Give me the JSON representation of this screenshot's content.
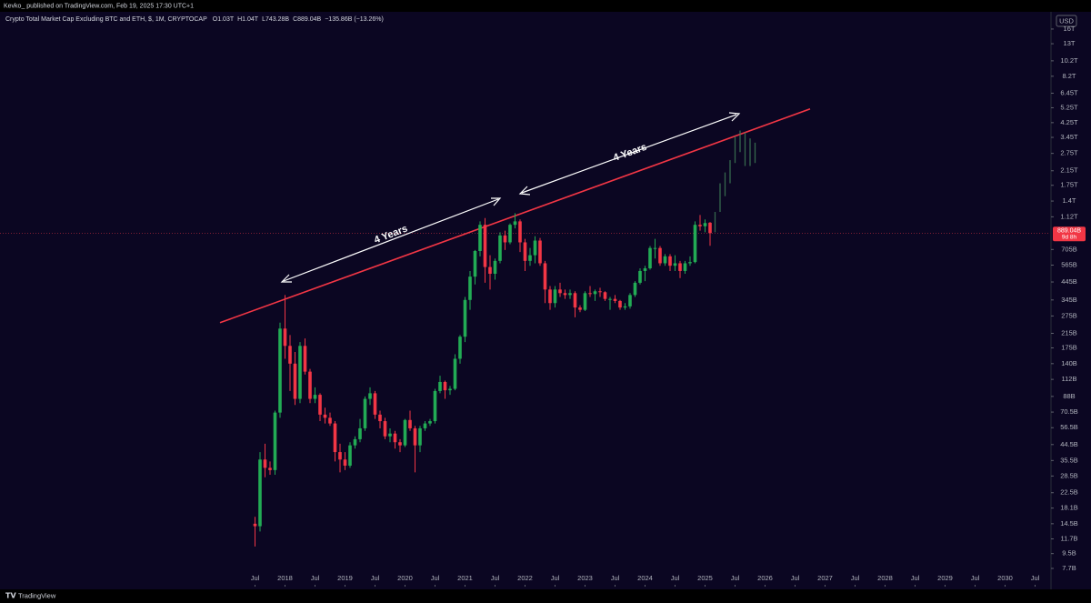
{
  "header": {
    "publisher": "Kevko_ published on TradingView.com, Feb 19, 2025 17:30 UTC+1"
  },
  "footer": {
    "brand": "TradingView"
  },
  "chart_data": {
    "type": "candlestick",
    "title": "Crypto Total Market Cap Excluding BTC and ETH, $, 1M, CRYPTOCAP",
    "ohlc_labels": {
      "open": "O1.03T",
      "high": "H1.04T",
      "low": "L743.28B",
      "close": "C889.04B",
      "change": "−135.86B (−13.26%)"
    },
    "currency": "USD",
    "log_scale": true,
    "ylim": [
      5.95,
      19900
    ],
    "xlim": [
      "2013-04",
      "2030-10"
    ],
    "yticks": [
      {
        "value": 16000,
        "label": "16T"
      },
      {
        "value": 13000,
        "label": "13T"
      },
      {
        "value": 10200,
        "label": "10.2T"
      },
      {
        "value": 8200,
        "label": "8.2T"
      },
      {
        "value": 6450,
        "label": "6.45T"
      },
      {
        "value": 5250,
        "label": "5.25T"
      },
      {
        "value": 4250,
        "label": "4.25T"
      },
      {
        "value": 3450,
        "label": "3.45T"
      },
      {
        "value": 2750,
        "label": "2.75T"
      },
      {
        "value": 2150,
        "label": "2.15T"
      },
      {
        "value": 1750,
        "label": "1.75T"
      },
      {
        "value": 1400,
        "label": "1.4T"
      },
      {
        "value": 1120,
        "label": "1.12T"
      },
      {
        "value": 705,
        "label": "705B"
      },
      {
        "value": 565,
        "label": "565B"
      },
      {
        "value": 445,
        "label": "445B"
      },
      {
        "value": 345,
        "label": "345B"
      },
      {
        "value": 275,
        "label": "275B"
      },
      {
        "value": 215,
        "label": "215B"
      },
      {
        "value": 175,
        "label": "175B"
      },
      {
        "value": 140,
        "label": "140B"
      },
      {
        "value": 112,
        "label": "112B"
      },
      {
        "value": 88,
        "label": "88B"
      },
      {
        "value": 70.5,
        "label": "70.5B"
      },
      {
        "value": 56.5,
        "label": "56.5B"
      },
      {
        "value": 44.5,
        "label": "44.5B"
      },
      {
        "value": 35.5,
        "label": "35.5B"
      },
      {
        "value": 28.5,
        "label": "28.5B"
      },
      {
        "value": 22.5,
        "label": "22.5B"
      },
      {
        "value": 18.1,
        "label": "18.1B"
      },
      {
        "value": 14.5,
        "label": "14.5B"
      },
      {
        "value": 11.7,
        "label": "11.7B"
      },
      {
        "value": 9.5,
        "label": "9.5B"
      },
      {
        "value": 7.7,
        "label": "7.7B"
      }
    ],
    "xticks": [
      {
        "value": "2017-07",
        "label": "Jul"
      },
      {
        "value": "2018-01",
        "label": "2018"
      },
      {
        "value": "2018-07",
        "label": "Jul"
      },
      {
        "value": "2019-01",
        "label": "2019"
      },
      {
        "value": "2019-07",
        "label": "Jul"
      },
      {
        "value": "2020-01",
        "label": "2020"
      },
      {
        "value": "2020-07",
        "label": "Jul"
      },
      {
        "value": "2021-01",
        "label": "2021"
      },
      {
        "value": "2021-07",
        "label": "Jul"
      },
      {
        "value": "2022-01",
        "label": "2022"
      },
      {
        "value": "2022-07",
        "label": "Jul"
      },
      {
        "value": "2023-01",
        "label": "2023"
      },
      {
        "value": "2023-07",
        "label": "Jul"
      },
      {
        "value": "2024-01",
        "label": "2024"
      },
      {
        "value": "2024-07",
        "label": "Jul"
      },
      {
        "value": "2025-01",
        "label": "2025"
      },
      {
        "value": "2025-07",
        "label": "Jul"
      },
      {
        "value": "2026-01",
        "label": "2026"
      },
      {
        "value": "2026-07",
        "label": "Jul"
      },
      {
        "value": "2027-01",
        "label": "2027"
      },
      {
        "value": "2027-07",
        "label": "Jul"
      },
      {
        "value": "2028-01",
        "label": "2028"
      },
      {
        "value": "2028-07",
        "label": "Jul"
      },
      {
        "value": "2029-01",
        "label": "2029"
      },
      {
        "value": "2029-07",
        "label": "Jul"
      },
      {
        "value": "2030-01",
        "label": "2030"
      },
      {
        "value": "2030-07",
        "label": "Jul"
      }
    ],
    "up_color": "#22ab55",
    "down_color": "#f23645",
    "candles": {
      "x": [
        "2017-07",
        "2017-08",
        "2017-09",
        "2017-10",
        "2017-11",
        "2017-12",
        "2018-01",
        "2018-02",
        "2018-03",
        "2018-04",
        "2018-05",
        "2018-06",
        "2018-07",
        "2018-08",
        "2018-09",
        "2018-10",
        "2018-11",
        "2018-12",
        "2019-01",
        "2019-02",
        "2019-03",
        "2019-04",
        "2019-05",
        "2019-06",
        "2019-07",
        "2019-08",
        "2019-09",
        "2019-10",
        "2019-11",
        "2019-12",
        "2020-01",
        "2020-02",
        "2020-03",
        "2020-04",
        "2020-05",
        "2020-06",
        "2020-07",
        "2020-08",
        "2020-09",
        "2020-10",
        "2020-11",
        "2020-12",
        "2021-01",
        "2021-02",
        "2021-03",
        "2021-04",
        "2021-05",
        "2021-06",
        "2021-07",
        "2021-08",
        "2021-09",
        "2021-10",
        "2021-11",
        "2021-12",
        "2022-01",
        "2022-02",
        "2022-03",
        "2022-04",
        "2022-05",
        "2022-06",
        "2022-07",
        "2022-08",
        "2022-09",
        "2022-10",
        "2022-11",
        "2022-12",
        "2023-01",
        "2023-02",
        "2023-03",
        "2023-04",
        "2023-05",
        "2023-06",
        "2023-07",
        "2023-08",
        "2023-09",
        "2023-10",
        "2023-11",
        "2023-12",
        "2024-01",
        "2024-02",
        "2024-03",
        "2024-04",
        "2024-05",
        "2024-06",
        "2024-07",
        "2024-08",
        "2024-09",
        "2024-10",
        "2024-11",
        "2024-12",
        "2025-01",
        "2025-02"
      ],
      "open": [
        14.5,
        14,
        36,
        32,
        31,
        70,
        230,
        180,
        140,
        85,
        180,
        125,
        85,
        90,
        68,
        65,
        60,
        40,
        36,
        33,
        44,
        48,
        56,
        85,
        92,
        68,
        62,
        50,
        52,
        46,
        44,
        63,
        56,
        44,
        56,
        60,
        62,
        95,
        108,
        96,
        98,
        150,
        205,
        345,
        480,
        690,
        1000,
        550,
        500,
        600,
        860,
        780,
        1000,
        1050,
        780,
        600,
        650,
        800,
        580,
        400,
        330,
        400,
        380,
        370,
        380,
        310,
        300,
        380,
        375,
        390,
        385,
        350,
        350,
        340,
        310,
        315,
        370,
        440,
        520,
        540,
        720,
        720,
        580,
        640,
        560,
        580,
        520,
        580,
        590,
        1000,
        980,
        1030
      ],
      "high": [
        16,
        40,
        45,
        35,
        72,
        250,
        370,
        210,
        165,
        190,
        200,
        130,
        100,
        92,
        75,
        70,
        62,
        45,
        40,
        46,
        50,
        64,
        88,
        100,
        95,
        72,
        65,
        56,
        54,
        48,
        64,
        72,
        58,
        58,
        62,
        64,
        98,
        118,
        110,
        102,
        160,
        210,
        360,
        520,
        700,
        1050,
        1100,
        650,
        620,
        900,
        920,
        1020,
        1180,
        1080,
        820,
        720,
        850,
        830,
        600,
        420,
        420,
        440,
        400,
        400,
        390,
        320,
        390,
        420,
        400,
        410,
        390,
        360,
        370,
        345,
        330,
        380,
        450,
        540,
        560,
        740,
        820,
        740,
        660,
        660,
        650,
        600,
        600,
        640,
        1050,
        1150,
        1080,
        1040
      ],
      "low": [
        10.5,
        13,
        28,
        29,
        29,
        65,
        150,
        95,
        78,
        80,
        120,
        80,
        80,
        62,
        60,
        58,
        35,
        30,
        31,
        32,
        42,
        46,
        54,
        78,
        64,
        56,
        48,
        46,
        42,
        40,
        43,
        54,
        30,
        40,
        54,
        58,
        60,
        92,
        85,
        90,
        96,
        140,
        190,
        300,
        430,
        640,
        440,
        400,
        460,
        580,
        700,
        760,
        950,
        680,
        520,
        560,
        580,
        560,
        330,
        300,
        310,
        360,
        350,
        350,
        270,
        290,
        295,
        360,
        340,
        360,
        340,
        300,
        330,
        300,
        300,
        305,
        360,
        430,
        450,
        530,
        620,
        560,
        560,
        520,
        520,
        470,
        500,
        560,
        580,
        920,
        900,
        743.28
      ],
      "close": [
        14,
        36,
        32,
        31,
        70,
        230,
        180,
        140,
        85,
        180,
        125,
        85,
        90,
        68,
        65,
        60,
        40,
        36,
        33,
        44,
        48,
        56,
        85,
        92,
        68,
        62,
        50,
        52,
        46,
        44,
        63,
        56,
        44,
        56,
        60,
        62,
        95,
        108,
        96,
        98,
        150,
        205,
        345,
        480,
        690,
        1000,
        550,
        500,
        600,
        860,
        780,
        1000,
        1050,
        780,
        600,
        650,
        800,
        580,
        400,
        330,
        400,
        380,
        370,
        380,
        310,
        300,
        380,
        375,
        390,
        385,
        350,
        350,
        340,
        310,
        315,
        370,
        440,
        520,
        540,
        720,
        720,
        580,
        640,
        560,
        580,
        520,
        580,
        590,
        1000,
        980,
        1025,
        889.04
      ]
    },
    "projection": {
      "color": "#3d7a55",
      "x": [
        "2025-03",
        "2025-04",
        "2025-05",
        "2025-06",
        "2025-07",
        "2025-08",
        "2025-09",
        "2025-10",
        "2025-11"
      ],
      "low": [
        900,
        1200,
        1500,
        1800,
        2400,
        2800,
        2300,
        2300,
        2400
      ],
      "high": [
        1200,
        1800,
        2100,
        2500,
        3500,
        3800,
        3700,
        3400,
        3200
      ]
    },
    "trendline": {
      "color": "#f23645",
      "x": [
        "2016-12",
        "2026-10"
      ],
      "values": [
        250,
        5160
      ]
    },
    "price_label": {
      "value": 889.04,
      "label": "889.04B",
      "countdown": "9d 8h",
      "color": "#f23645"
    },
    "annotations": [
      {
        "text": "4 Years"
      },
      {
        "text": "4 Years"
      }
    ]
  }
}
